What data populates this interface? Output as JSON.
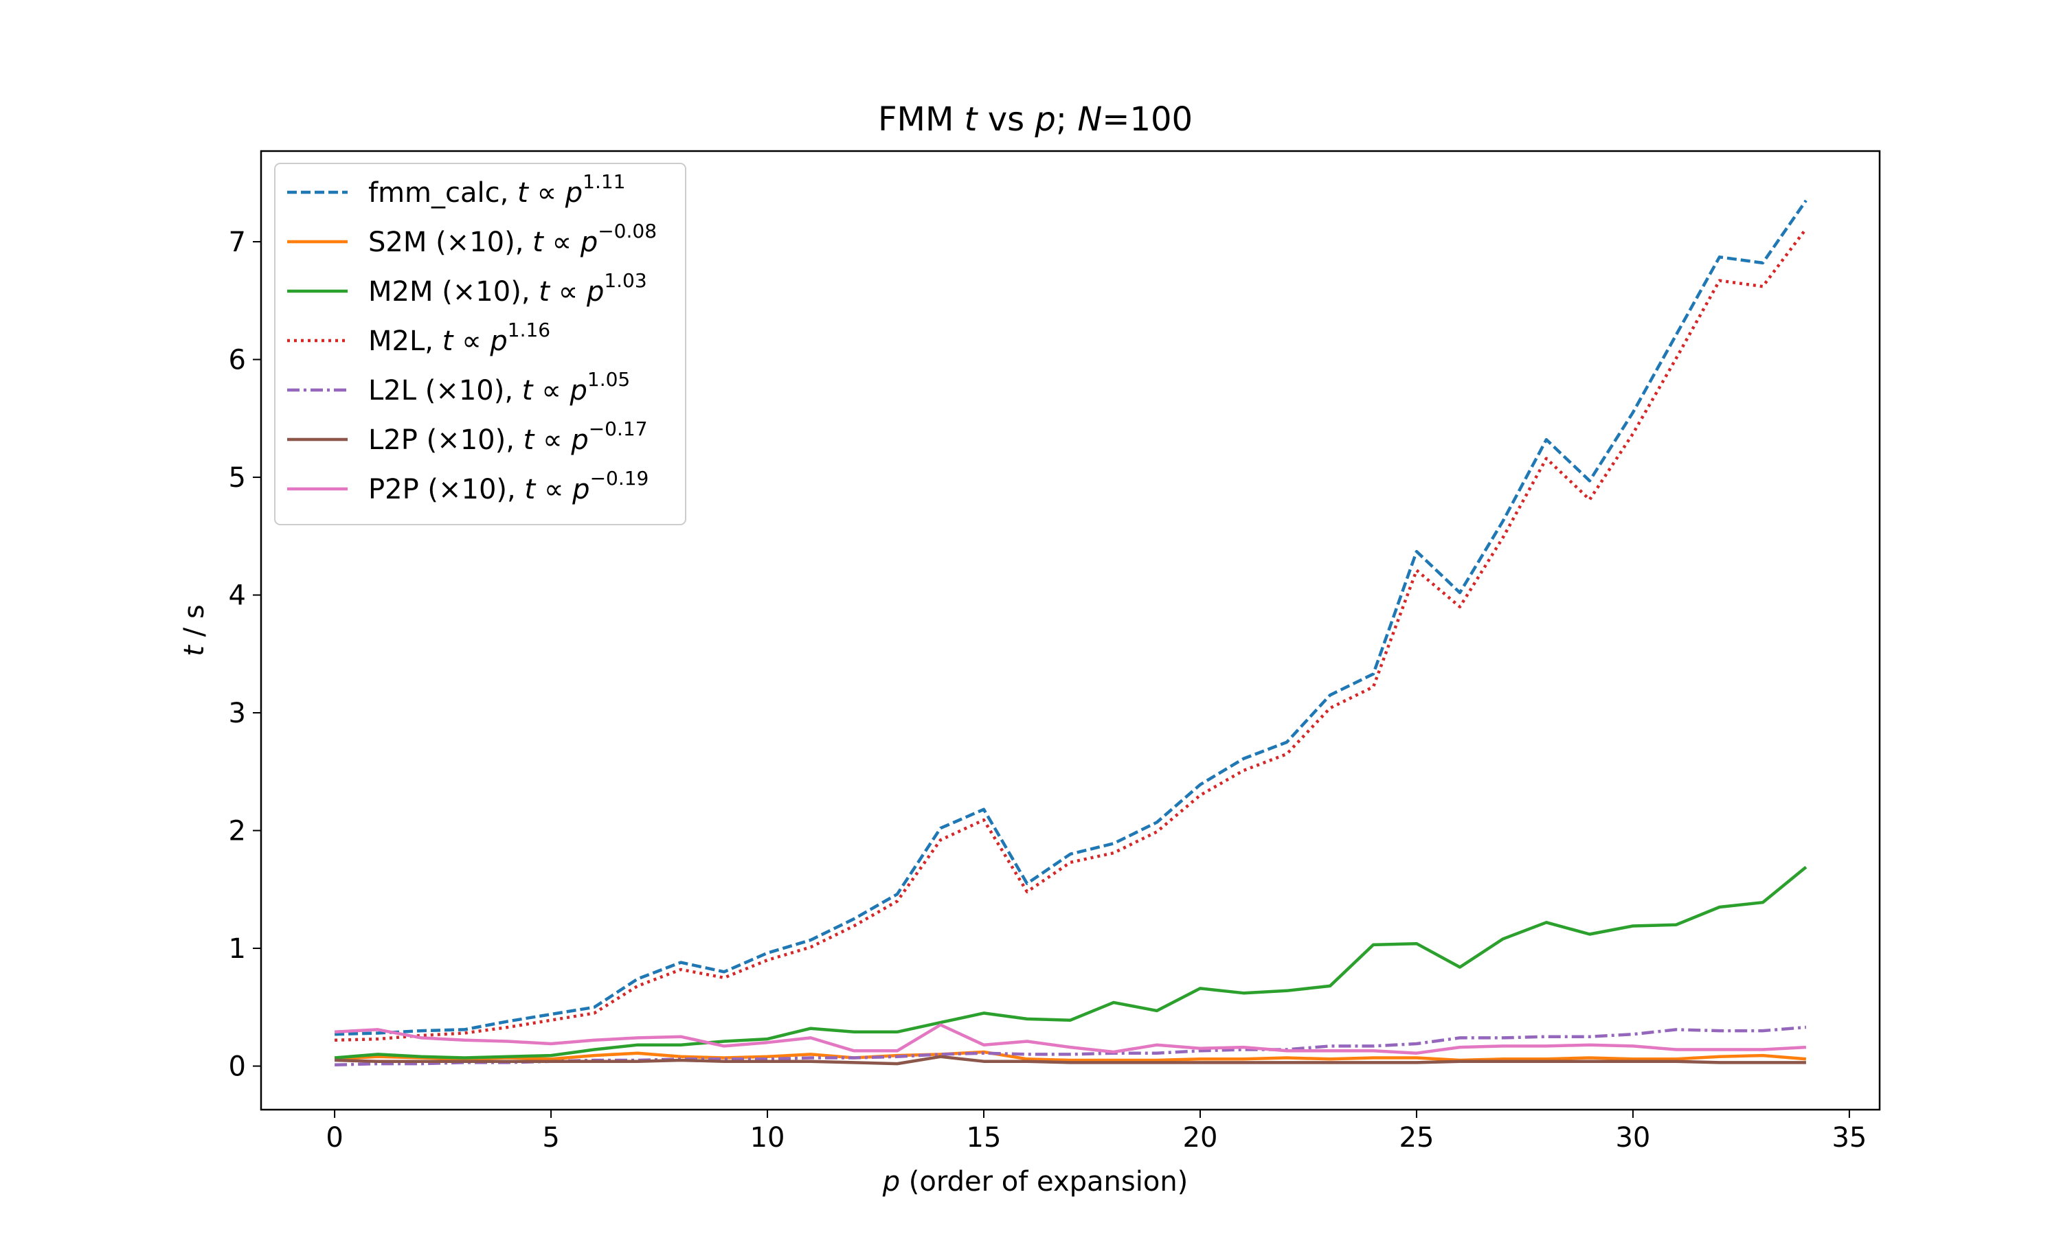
{
  "chart_data": {
    "type": "line",
    "title": {
      "main": "FMM ",
      "t": "t",
      "vs": " vs ",
      "p": "p",
      "sep": "; ",
      "N": "N",
      "eq": "=100"
    },
    "xlabel": {
      "var": "p",
      "text": " (order of expansion)"
    },
    "ylabel": {
      "var": "t",
      "text": " / s"
    },
    "xlim": [
      -1.7,
      35.7
    ],
    "ylim": [
      -0.37,
      7.77
    ],
    "xticks": [
      0,
      5,
      10,
      15,
      20,
      25,
      30,
      35
    ],
    "yticks": [
      0,
      1,
      2,
      3,
      4,
      5,
      6,
      7
    ],
    "grid": false,
    "legend_position": "top-left",
    "x": [
      0,
      1,
      2,
      3,
      4,
      5,
      6,
      7,
      8,
      9,
      10,
      11,
      12,
      13,
      14,
      15,
      16,
      17,
      18,
      19,
      20,
      21,
      22,
      23,
      24,
      25,
      26,
      27,
      28,
      29,
      30,
      31,
      32,
      33,
      34
    ],
    "series": [
      {
        "name": "fmm_calc,",
        "exp_label": "1.11",
        "color": "#1f77b4",
        "style": "dashed",
        "values": [
          0.27,
          0.28,
          0.3,
          0.31,
          0.38,
          0.44,
          0.5,
          0.74,
          0.88,
          0.8,
          0.96,
          1.07,
          1.25,
          1.46,
          2.02,
          2.18,
          1.55,
          1.8,
          1.89,
          2.07,
          2.39,
          2.61,
          2.75,
          3.15,
          3.33,
          4.37,
          4.02,
          4.63,
          5.32,
          4.97,
          5.55,
          6.21,
          6.87,
          6.82,
          7.35
        ]
      },
      {
        "name": "S2M (×10),",
        "exp_label": "−0.08",
        "color": "#ff7f0e",
        "style": "solid",
        "values": [
          0.06,
          0.08,
          0.07,
          0.06,
          0.07,
          0.06,
          0.09,
          0.11,
          0.08,
          0.07,
          0.08,
          0.1,
          0.07,
          0.09,
          0.1,
          0.12,
          0.06,
          0.05,
          0.05,
          0.05,
          0.06,
          0.06,
          0.07,
          0.06,
          0.07,
          0.07,
          0.05,
          0.06,
          0.06,
          0.07,
          0.06,
          0.06,
          0.08,
          0.09,
          0.06
        ]
      },
      {
        "name": "M2M (×10),",
        "exp_label": "1.03",
        "color": "#2ca02c",
        "style": "solid",
        "values": [
          0.07,
          0.1,
          0.08,
          0.07,
          0.08,
          0.09,
          0.14,
          0.18,
          0.18,
          0.21,
          0.23,
          0.32,
          0.29,
          0.29,
          0.37,
          0.45,
          0.4,
          0.39,
          0.54,
          0.47,
          0.66,
          0.62,
          0.64,
          0.68,
          1.03,
          1.04,
          0.84,
          1.08,
          1.22,
          1.12,
          1.19,
          1.2,
          1.35,
          1.39,
          1.69
        ]
      },
      {
        "name": "M2L,",
        "exp_label": "1.16",
        "color": "#d62728",
        "style": "dotted",
        "values": [
          0.22,
          0.23,
          0.26,
          0.28,
          0.33,
          0.39,
          0.45,
          0.68,
          0.82,
          0.75,
          0.9,
          1.01,
          1.19,
          1.4,
          1.92,
          2.09,
          1.48,
          1.73,
          1.81,
          1.99,
          2.3,
          2.51,
          2.65,
          3.04,
          3.22,
          4.21,
          3.9,
          4.49,
          5.16,
          4.81,
          5.37,
          6.01,
          6.67,
          6.62,
          7.11
        ]
      },
      {
        "name": "L2L (×10),",
        "exp_label": "1.05",
        "color": "#9467bd",
        "style": "dashdot",
        "values": [
          0.01,
          0.02,
          0.02,
          0.03,
          0.03,
          0.04,
          0.05,
          0.05,
          0.06,
          0.06,
          0.06,
          0.07,
          0.07,
          0.08,
          0.1,
          0.11,
          0.1,
          0.1,
          0.11,
          0.11,
          0.13,
          0.14,
          0.14,
          0.17,
          0.17,
          0.19,
          0.24,
          0.24,
          0.25,
          0.25,
          0.27,
          0.31,
          0.3,
          0.3,
          0.33
        ]
      },
      {
        "name": "L2P (×10),",
        "exp_label": "−0.17",
        "color": "#8c564b",
        "style": "solid",
        "values": [
          0.05,
          0.04,
          0.04,
          0.04,
          0.04,
          0.04,
          0.04,
          0.04,
          0.05,
          0.04,
          0.04,
          0.04,
          0.03,
          0.02,
          0.08,
          0.04,
          0.04,
          0.03,
          0.03,
          0.03,
          0.03,
          0.03,
          0.03,
          0.03,
          0.03,
          0.03,
          0.04,
          0.04,
          0.04,
          0.04,
          0.04,
          0.04,
          0.03,
          0.03,
          0.03
        ]
      },
      {
        "name": "P2P (×10),",
        "exp_label": "−0.19",
        "color": "#e377c2",
        "style": "solid",
        "values": [
          0.29,
          0.31,
          0.24,
          0.22,
          0.21,
          0.19,
          0.22,
          0.24,
          0.25,
          0.17,
          0.2,
          0.24,
          0.13,
          0.13,
          0.35,
          0.18,
          0.21,
          0.16,
          0.12,
          0.18,
          0.15,
          0.16,
          0.13,
          0.13,
          0.13,
          0.11,
          0.16,
          0.17,
          0.17,
          0.18,
          0.17,
          0.14,
          0.14,
          0.14,
          0.16
        ]
      }
    ],
    "legend_formula": {
      "t": "t",
      "prop": " ∝ ",
      "p": "p"
    }
  }
}
